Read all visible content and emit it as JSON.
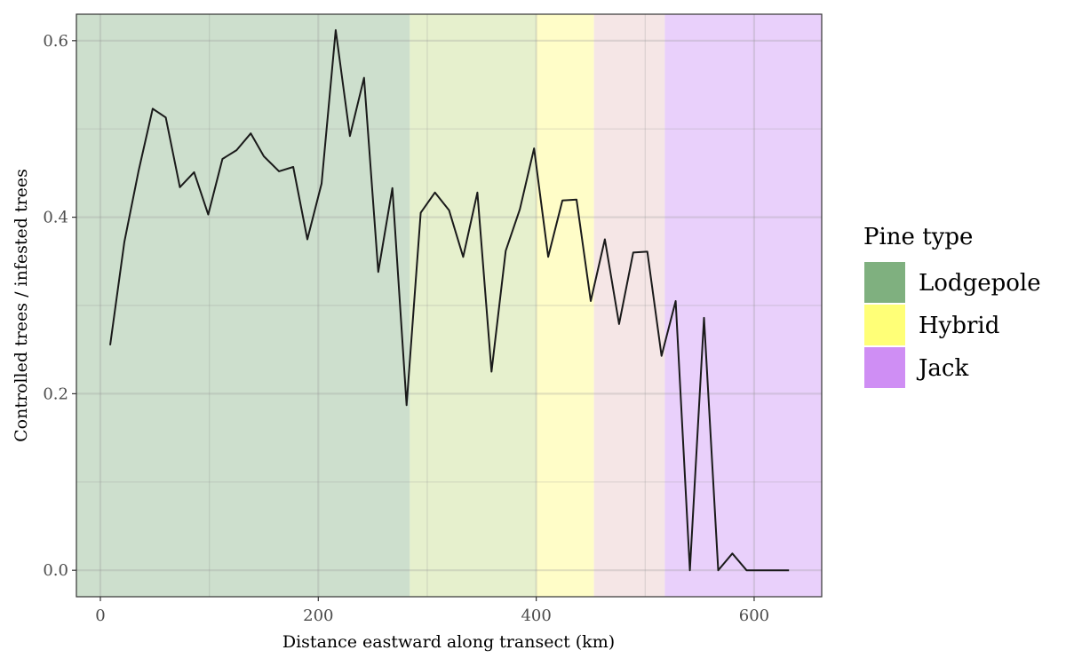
{
  "chart_data": {
    "type": "line",
    "title": "",
    "xlabel": "Distance eastward along transect (km)",
    "ylabel": "Controlled trees / infested trees",
    "xlim": [
      -22,
      662
    ],
    "ylim": [
      -0.03,
      0.63
    ],
    "x_ticks": [
      0,
      200,
      400,
      600
    ],
    "x_tick_labels": [
      "0",
      "200",
      "400",
      "600"
    ],
    "y_ticks": [
      0.0,
      0.2,
      0.4,
      0.6
    ],
    "y_tick_labels": [
      "0.0",
      "0.2",
      "0.4",
      "0.6"
    ],
    "grid": true,
    "legend_position": "right",
    "legend": {
      "title": "Pine type",
      "entries": [
        {
          "label": "Lodgepole",
          "color": "#7fb07f"
        },
        {
          "label": "Hybrid",
          "color": "#ffff77"
        },
        {
          "label": "Jack",
          "color": "#cf8ef4"
        }
      ]
    },
    "bands": [
      {
        "x_start": -22,
        "x_end": 284,
        "color": "#cddfcd"
      },
      {
        "x_start": 284,
        "x_end": 400,
        "color": "#e6f0cd"
      },
      {
        "x_start": 400,
        "x_end": 453,
        "color": "#fffdc8"
      },
      {
        "x_start": 453,
        "x_end": 518,
        "color": "#f5e6e6"
      },
      {
        "x_start": 518,
        "x_end": 662,
        "color": "#e9d0fb"
      }
    ],
    "series": [
      {
        "x": [
          9,
          22,
          35,
          48,
          60,
          73,
          86,
          99,
          112,
          125,
          138,
          150,
          164,
          177,
          190,
          203,
          216,
          229,
          242,
          255,
          268,
          281,
          294,
          307,
          320,
          333,
          346,
          359,
          372,
          385,
          398,
          411,
          424,
          437,
          450,
          463,
          476,
          489,
          502,
          515,
          528,
          541,
          554,
          567,
          580,
          593,
          606,
          619,
          632
        ],
        "y": [
          0.255,
          0.372,
          0.452,
          0.523,
          0.513,
          0.434,
          0.451,
          0.403,
          0.466,
          0.476,
          0.495,
          0.469,
          0.452,
          0.457,
          0.375,
          0.438,
          0.612,
          0.492,
          0.558,
          0.338,
          0.433,
          0.187,
          0.405,
          0.428,
          0.408,
          0.355,
          0.428,
          0.225,
          0.362,
          0.409,
          0.478,
          0.355,
          0.419,
          0.42,
          0.305,
          0.375,
          0.279,
          0.36,
          0.361,
          0.243,
          0.305,
          0.0,
          0.286,
          0.0,
          0.019,
          0.0,
          0.0,
          0.0,
          0.0
        ],
        "color": "#1a1a1a"
      }
    ]
  }
}
